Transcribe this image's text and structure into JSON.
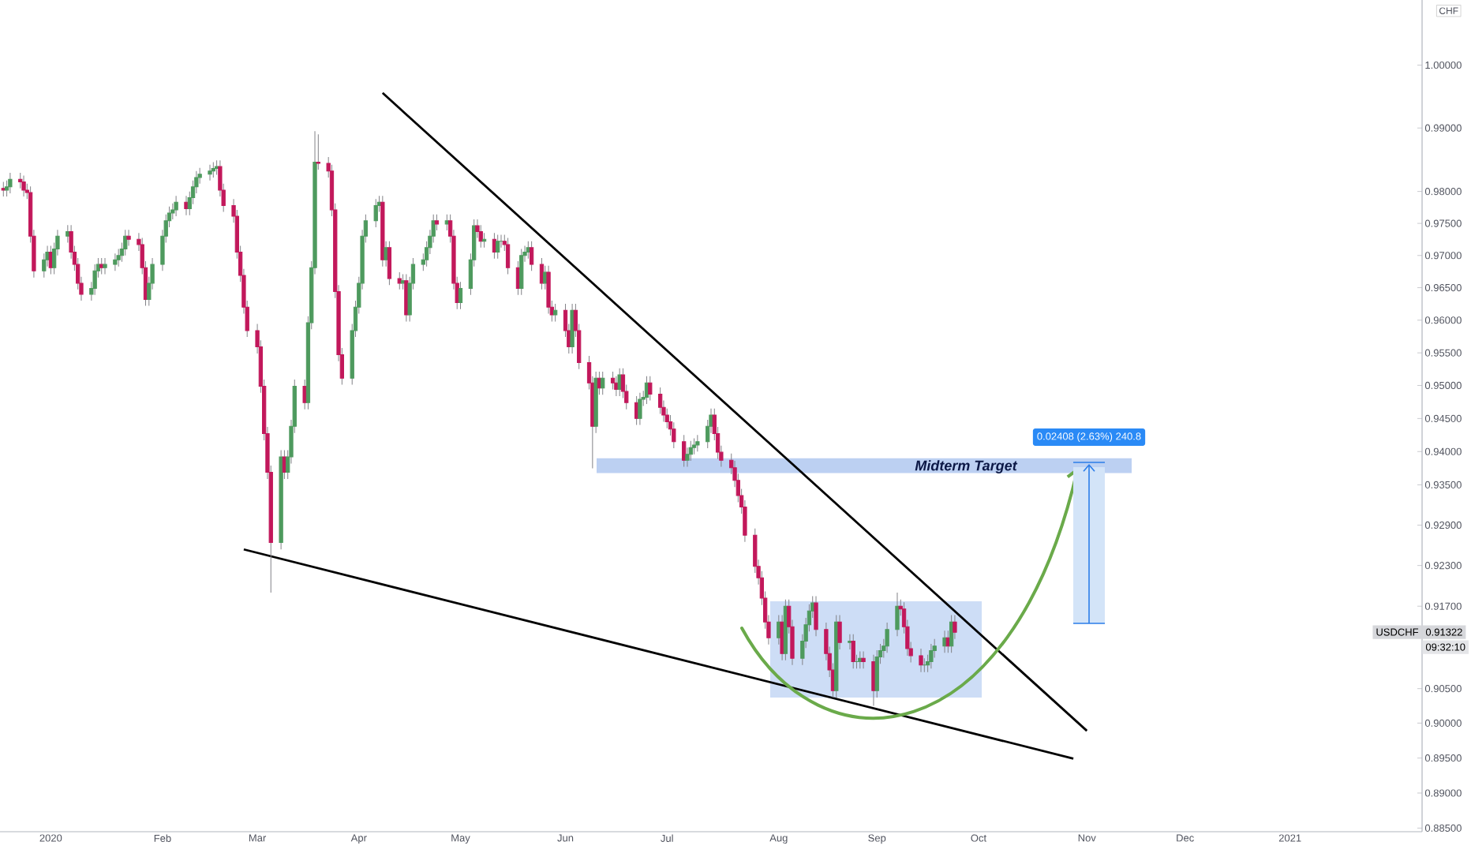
{
  "chart_data": {
    "type": "candlestick",
    "ylabel": "CHF",
    "log": true,
    "xlim": [
      "2019-12-17",
      "2021-02-09"
    ],
    "ylim": [
      0.8845,
      1.0105
    ],
    "xticks": [
      {
        "value": "2020-01-01",
        "label": "2020"
      },
      {
        "value": "2020-02-03",
        "label": "Feb"
      },
      {
        "value": "2020-03-02",
        "label": "Mar"
      },
      {
        "value": "2020-04-01",
        "label": "Apr"
      },
      {
        "value": "2020-05-01",
        "label": "May"
      },
      {
        "value": "2020-06-01",
        "label": "Jun"
      },
      {
        "value": "2020-07-01",
        "label": "Jul"
      },
      {
        "value": "2020-08-03",
        "label": "Aug"
      },
      {
        "value": "2020-09-01",
        "label": "Sep"
      },
      {
        "value": "2020-10-01",
        "label": "Oct"
      },
      {
        "value": "2020-11-02",
        "label": "Nov"
      },
      {
        "value": "2020-12-01",
        "label": "Dec"
      },
      {
        "value": "2021-01-01",
        "label": "2021"
      }
    ],
    "yticks": [
      {
        "value": 0.885,
        "label": "0.88500"
      },
      {
        "value": 0.89,
        "label": "0.89000"
      },
      {
        "value": 0.895,
        "label": "0.89500"
      },
      {
        "value": 0.9,
        "label": "0.90000"
      },
      {
        "value": 0.905,
        "label": "0.90500"
      },
      {
        "value": 0.917,
        "label": "0.91700"
      },
      {
        "value": 0.923,
        "label": "0.92300"
      },
      {
        "value": 0.929,
        "label": "0.92900"
      },
      {
        "value": 0.935,
        "label": "0.93500"
      },
      {
        "value": 0.94,
        "label": "0.94000"
      },
      {
        "value": 0.945,
        "label": "0.94500"
      },
      {
        "value": 0.95,
        "label": "0.95000"
      },
      {
        "value": 0.955,
        "label": "0.95500"
      },
      {
        "value": 0.96,
        "label": "0.96000"
      },
      {
        "value": 0.965,
        "label": "0.96500"
      },
      {
        "value": 0.97,
        "label": "0.97000"
      },
      {
        "value": 0.975,
        "label": "0.97500"
      },
      {
        "value": 0.98,
        "label": "0.98000"
      },
      {
        "value": 0.99,
        "label": "0.99000"
      },
      {
        "value": 1.0,
        "label": "1.00000"
      }
    ],
    "colors": [
      "#c2185b",
      "#4e9a5e",
      "#4e9a5e",
      "#c2185b",
      "#c2185b",
      "#c2185b",
      "#c2185b",
      "#c2185b",
      "#4e9a5e",
      "#4e9a5e",
      "#c2185b",
      "#4e9a5e",
      "#4e9a5e",
      "#4e9a5e",
      "#c2185b",
      "#c2185b",
      "#c2185b",
      "#c2185b",
      "#4e9a5e",
      "#4e9a5e",
      "#4e9a5e",
      "#c2185b",
      "#4e9a5e",
      "#4e9a5e",
      "#4e9a5e",
      "#4e9a5e",
      "#4e9a5e",
      "#c2185b",
      "#c2185b",
      "#c2185b",
      "#c2185b",
      "#4e9a5e",
      "#4e9a5e",
      "#4e9a5e",
      "#4e9a5e",
      "#4e9a5e",
      "#4e9a5e",
      "#4e9a5e",
      "#c2185b",
      "#4e9a5e",
      "#4e9a5e",
      "#4e9a5e",
      "#4e9a5e",
      "#4e9a5e",
      "#4e9a5e",
      "#4e9a5e",
      "#c2185b",
      "#c2185b",
      "#c2185b",
      "#c2185b",
      "#c2185b",
      "#c2185b",
      "#c2185b",
      "#c2185b",
      "#c2185b",
      "#c2185b",
      "#c2185b",
      "#c2185b",
      "#4e9a5e",
      "#c2185b",
      "#4e9a5e",
      "#4e9a5e",
      "#4e9a5e",
      "#c2185b",
      "#4e9a5e",
      "#4e9a5e",
      "#4e9a5e",
      "#c2185b",
      "#c2185b",
      "#c2185b",
      "#c2185b",
      "#c2185b",
      "#c2185b",
      "#4e9a5e",
      "#4e9a5e",
      "#4e9a5e",
      "#4e9a5e",
      "#4e9a5e",
      "#4e9a5e",
      "#4e9a5e",
      "#c2185b",
      "#4e9a5e",
      "#c2185b",
      "#c2185b",
      "#4e9a5e",
      "#c2185b",
      "#4e9a5e",
      "#4e9a5e",
      "#4e9a5e",
      "#4e9a5e",
      "#4e9a5e",
      "#4e9a5e",
      "#c2185b",
      "#4e9a5e",
      "#c2185b",
      "#c2185b",
      "#c2185b",
      "#4e9a5e",
      "#4e9a5e",
      "#4e9a5e",
      "#c2185b",
      "#c2185b",
      "#4e9a5e",
      "#c2185b",
      "#4e9a5e",
      "#4e9a5e",
      "#c2185b",
      "#c2185b",
      "#c2185b",
      "#4e9a5e",
      "#4e9a5e",
      "#4e9a5e",
      "#c2185b",
      "#c2185b",
      "#4e9a5e",
      "#c2185b",
      "#c2185b",
      "#4e9a5e",
      "#c2185b",
      "#c2185b",
      "#4e9a5e",
      "#c2185b",
      "#c2185b",
      "#c2185b",
      "#c2185b",
      "#4e9a5e",
      "#c2185b",
      "#4e9a5e",
      "#c2185b",
      "#c2185b",
      "#4e9a5e",
      "#c2185b",
      "#c2185b",
      "#c2185b",
      "#4e9a5e",
      "#4e9a5e",
      "#4e9a5e",
      "#c2185b",
      "#c2185b",
      "#c2185b",
      "#c2185b",
      "#c2185b",
      "#c2185b",
      "#c2185b",
      "#4e9a5e",
      "#4e9a5e",
      "#4e9a5e",
      "#4e9a5e",
      "#4e9a5e",
      "#4e9a5e",
      "#c2185b",
      "#c2185b",
      "#c2185b",
      "#c2185b",
      "#c2185b",
      "#c2185b",
      "#c2185b",
      "#c2185b",
      "#c2185b",
      "#c2185b",
      "#c2185b",
      "#c2185b",
      "#c2185b",
      "#4e9a5e",
      "#c2185b",
      "#4e9a5e",
      "#c2185b",
      "#c2185b",
      "#4e9a5e",
      "#4e9a5e",
      "#4e9a5e",
      "#4e9a5e",
      "#c2185b",
      "#c2185b",
      "#c2185b",
      "#c2185b",
      "#4e9a5e",
      "#c2185b",
      "#4e9a5e",
      "#c2185b",
      "#4e9a5e",
      "#4e9a5e",
      "#c2185b",
      "#c2185b",
      "#4e9a5e",
      "#4e9a5e",
      "#4e9a5e",
      "#4e9a5e",
      "#4e9a5e",
      "#c2185b",
      "#c2185b",
      "#c2185b",
      "#c2185b",
      "#c2185b",
      "#4e9a5e",
      "#4e9a5e",
      "#4e9a5e",
      "#4e9a5e",
      "#4e9a5e",
      "#c2185b",
      "#4e9a5e",
      "#c2185b"
    ],
    "x": [
      "2019-12-18",
      "2019-12-19",
      "2019-12-20",
      "2019-12-23",
      "2019-12-24",
      "2019-12-25",
      "2019-12-26",
      "2019-12-27",
      "2019-12-30",
      "2019-12-31",
      "2020-01-01",
      "2020-01-02",
      "2020-01-03",
      "2020-01-06",
      "2020-01-07",
      "2020-01-08",
      "2020-01-09",
      "2020-01-10",
      "2020-01-13",
      "2020-01-14",
      "2020-01-15",
      "2020-01-16",
      "2020-01-17",
      "2020-01-20",
      "2020-01-21",
      "2020-01-22",
      "2020-01-23",
      "2020-01-24",
      "2020-01-27",
      "2020-01-28",
      "2020-01-29",
      "2020-01-30",
      "2020-01-31",
      "2020-02-03",
      "2020-02-04",
      "2020-02-05",
      "2020-02-06",
      "2020-02-07",
      "2020-02-10",
      "2020-02-11",
      "2020-02-12",
      "2020-02-13",
      "2020-02-14",
      "2020-02-17",
      "2020-02-18",
      "2020-02-19",
      "2020-02-20",
      "2020-02-21",
      "2020-02-24",
      "2020-02-25",
      "2020-02-26",
      "2020-02-27",
      "2020-02-28",
      "2020-03-02",
      "2020-03-03",
      "2020-03-04",
      "2020-03-05",
      "2020-03-06",
      "2020-03-09",
      "2020-03-10",
      "2020-03-11",
      "2020-03-12",
      "2020-03-13",
      "2020-03-16",
      "2020-03-17",
      "2020-03-18",
      "2020-03-19",
      "2020-03-20",
      "2020-03-23",
      "2020-03-24",
      "2020-03-25",
      "2020-03-26",
      "2020-03-27",
      "2020-03-30",
      "2020-03-31",
      "2020-04-01",
      "2020-04-02",
      "2020-04-03",
      "2020-04-06",
      "2020-04-07",
      "2020-04-08",
      "2020-04-09",
      "2020-04-10",
      "2020-04-13",
      "2020-04-14",
      "2020-04-15",
      "2020-04-16",
      "2020-04-17",
      "2020-04-20",
      "2020-04-21",
      "2020-04-22",
      "2020-04-23",
      "2020-04-24",
      "2020-04-27",
      "2020-04-28",
      "2020-04-29",
      "2020-04-30",
      "2020-05-01",
      "2020-05-04",
      "2020-05-05",
      "2020-05-06",
      "2020-05-07",
      "2020-05-08",
      "2020-05-11",
      "2020-05-12",
      "2020-05-13",
      "2020-05-14",
      "2020-05-15",
      "2020-05-18",
      "2020-05-19",
      "2020-05-20",
      "2020-05-21",
      "2020-05-22",
      "2020-05-25",
      "2020-05-26",
      "2020-05-27",
      "2020-05-28",
      "2020-05-29",
      "2020-06-01",
      "2020-06-02",
      "2020-06-03",
      "2020-06-04",
      "2020-06-05",
      "2020-06-08",
      "2020-06-09",
      "2020-06-10",
      "2020-06-11",
      "2020-06-12",
      "2020-06-15",
      "2020-06-16",
      "2020-06-17",
      "2020-06-18",
      "2020-06-19",
      "2020-06-22",
      "2020-06-23",
      "2020-06-24",
      "2020-06-25",
      "2020-06-26",
      "2020-06-29",
      "2020-06-30",
      "2020-07-01",
      "2020-07-02",
      "2020-07-03",
      "2020-07-06",
      "2020-07-07",
      "2020-07-08",
      "2020-07-09",
      "2020-07-10",
      "2020-07-13",
      "2020-07-14",
      "2020-07-15",
      "2020-07-16",
      "2020-07-17",
      "2020-07-20",
      "2020-07-21",
      "2020-07-22",
      "2020-07-23",
      "2020-07-24",
      "2020-07-27",
      "2020-07-28",
      "2020-07-29",
      "2020-07-30",
      "2020-07-31",
      "2020-08-03",
      "2020-08-04",
      "2020-08-05",
      "2020-08-06",
      "2020-08-07",
      "2020-08-10",
      "2020-08-11",
      "2020-08-12",
      "2020-08-13",
      "2020-08-14",
      "2020-08-17",
      "2020-08-18",
      "2020-08-19",
      "2020-08-20",
      "2020-08-21",
      "2020-08-24",
      "2020-08-25",
      "2020-08-26",
      "2020-08-27",
      "2020-08-28",
      "2020-08-31",
      "2020-09-01",
      "2020-09-02",
      "2020-09-03",
      "2020-09-04",
      "2020-09-07",
      "2020-09-08",
      "2020-09-09",
      "2020-09-10",
      "2020-09-11",
      "2020-09-14",
      "2020-09-15",
      "2020-09-16",
      "2020-09-17",
      "2020-09-18",
      "2020-09-21",
      "2020-09-22",
      "2020-09-23",
      "2020-09-24"
    ],
    "ohlc": [
      [
        0.9805,
        0.9815,
        0.9792,
        0.9802
      ],
      [
        0.9802,
        0.9817,
        0.9792,
        0.9807
      ],
      [
        0.9807,
        0.9829,
        0.9797,
        0.9819
      ],
      [
        0.9819,
        0.9829,
        0.9805,
        0.9815
      ],
      [
        0.9815,
        0.9825,
        0.9792,
        0.9802
      ],
      [
        0.9802,
        0.9812,
        0.9788,
        0.9798
      ],
      [
        0.9798,
        0.9808,
        0.972,
        0.973
      ],
      [
        0.973,
        0.974,
        0.9666,
        0.9676
      ],
      [
        0.9676,
        0.9703,
        0.9666,
        0.9693
      ],
      [
        0.9693,
        0.9715,
        0.9683,
        0.9705
      ],
      [
        0.9705,
        0.9715,
        0.9671,
        0.9681
      ],
      [
        0.9681,
        0.972,
        0.9671,
        0.971
      ],
      [
        0.971,
        0.974,
        0.97,
        0.973
      ],
      [
        0.973,
        0.9747,
        0.972,
        0.9737
      ],
      [
        0.9737,
        0.9747,
        0.9695,
        0.9705
      ],
      [
        0.9705,
        0.9715,
        0.9676,
        0.9686
      ],
      [
        0.9686,
        0.9696,
        0.9647,
        0.9657
      ],
      [
        0.9657,
        0.9667,
        0.963,
        0.964
      ],
      [
        0.964,
        0.9659,
        0.963,
        0.9649
      ],
      [
        0.9649,
        0.9686,
        0.9639,
        0.9676
      ],
      [
        0.9676,
        0.9696,
        0.9666,
        0.9686
      ],
      [
        0.9686,
        0.9696,
        0.9671,
        0.9681
      ],
      [
        0.9681,
        0.9696,
        0.9671,
        0.9686
      ],
      [
        0.9686,
        0.9703,
        0.9676,
        0.9693
      ],
      [
        0.9693,
        0.971,
        0.9683,
        0.97
      ],
      [
        0.97,
        0.972,
        0.969,
        0.971
      ],
      [
        0.971,
        0.974,
        0.97,
        0.973
      ],
      [
        0.973,
        0.974,
        0.9715,
        0.9725
      ],
      [
        0.9725,
        0.9735,
        0.9707,
        0.9717
      ],
      [
        0.9717,
        0.9727,
        0.9671,
        0.9681
      ],
      [
        0.9681,
        0.9691,
        0.9622,
        0.9632
      ],
      [
        0.9632,
        0.9667,
        0.9622,
        0.9657
      ],
      [
        0.9657,
        0.9696,
        0.9647,
        0.9686
      ],
      [
        0.9686,
        0.974,
        0.9676,
        0.973
      ],
      [
        0.973,
        0.9764,
        0.972,
        0.9754
      ],
      [
        0.9754,
        0.9776,
        0.9744,
        0.9766
      ],
      [
        0.9766,
        0.9781,
        0.9756,
        0.9771
      ],
      [
        0.9771,
        0.9793,
        0.9761,
        0.9783
      ],
      [
        0.9783,
        0.9793,
        0.9763,
        0.9773
      ],
      [
        0.9773,
        0.98,
        0.9763,
        0.979
      ],
      [
        0.979,
        0.9817,
        0.978,
        0.9807
      ],
      [
        0.9807,
        0.9832,
        0.9797,
        0.9822
      ],
      [
        0.9822,
        0.9837,
        0.9812,
        0.9827
      ],
      [
        0.9827,
        0.9842,
        0.9817,
        0.9832
      ],
      [
        0.9832,
        0.9846,
        0.9822,
        0.9836
      ],
      [
        0.9836,
        0.9849,
        0.9826,
        0.9839
      ],
      [
        0.9839,
        0.9849,
        0.9792,
        0.9802
      ],
      [
        0.9802,
        0.9812,
        0.9768,
        0.9778
      ],
      [
        0.9778,
        0.9788,
        0.9751,
        0.9761
      ],
      [
        0.9761,
        0.9771,
        0.9695,
        0.9705
      ],
      [
        0.9705,
        0.9715,
        0.9659,
        0.9669
      ],
      [
        0.9669,
        0.9679,
        0.961,
        0.962
      ],
      [
        0.962,
        0.963,
        0.9574,
        0.9584
      ],
      [
        0.9584,
        0.9594,
        0.9549,
        0.9559
      ],
      [
        0.9559,
        0.9569,
        0.9489,
        0.9499
      ],
      [
        0.9499,
        0.9509,
        0.9417,
        0.9427
      ],
      [
        0.9427,
        0.9437,
        0.9359,
        0.9369
      ],
      [
        0.9369,
        0.9379,
        0.919,
        0.9264
      ],
      [
        0.9264,
        0.9402,
        0.9254,
        0.9392
      ],
      [
        0.9392,
        0.9402,
        0.9359,
        0.9369
      ],
      [
        0.9369,
        0.9402,
        0.9359,
        0.9392
      ],
      [
        0.9392,
        0.9448,
        0.9382,
        0.9438
      ],
      [
        0.9438,
        0.9509,
        0.9428,
        0.9499
      ],
      [
        0.9499,
        0.9509,
        0.9464,
        0.9474
      ],
      [
        0.9474,
        0.9606,
        0.9464,
        0.9596
      ],
      [
        0.9596,
        0.9691,
        0.9586,
        0.9681
      ],
      [
        0.9681,
        0.9895,
        0.9671,
        0.9846
      ],
      [
        0.9846,
        0.989,
        0.9834,
        0.9844
      ],
      [
        0.9844,
        0.9854,
        0.9822,
        0.9832
      ],
      [
        0.9832,
        0.9842,
        0.9761,
        0.9771
      ],
      [
        0.9771,
        0.9781,
        0.9634,
        0.9644
      ],
      [
        0.9644,
        0.9654,
        0.9537,
        0.9547
      ],
      [
        0.9547,
        0.9557,
        0.9501,
        0.9511
      ],
      [
        0.9511,
        0.9594,
        0.9501,
        0.9584
      ],
      [
        0.9584,
        0.963,
        0.9574,
        0.962
      ],
      [
        0.962,
        0.9667,
        0.961,
        0.9657
      ],
      [
        0.9657,
        0.974,
        0.9647,
        0.973
      ],
      [
        0.973,
        0.9764,
        0.972,
        0.9754
      ],
      [
        0.9754,
        0.9788,
        0.9744,
        0.9778
      ],
      [
        0.9778,
        0.9793,
        0.9768,
        0.9783
      ],
      [
        0.9783,
        0.9793,
        0.9683,
        0.9693
      ],
      [
        0.9693,
        0.9722,
        0.9683,
        0.9712
      ],
      [
        0.9712,
        0.9722,
        0.9654,
        0.9664
      ],
      [
        0.9664,
        0.9674,
        0.9647,
        0.9657
      ],
      [
        0.9657,
        0.9671,
        0.9647,
        0.9661
      ],
      [
        0.9661,
        0.9671,
        0.9598,
        0.9608
      ],
      [
        0.9608,
        0.9667,
        0.9598,
        0.9657
      ],
      [
        0.9657,
        0.9696,
        0.9647,
        0.9686
      ],
      [
        0.9686,
        0.9703,
        0.9676,
        0.9693
      ],
      [
        0.9693,
        0.9722,
        0.9683,
        0.9712
      ],
      [
        0.9712,
        0.974,
        0.9702,
        0.973
      ],
      [
        0.973,
        0.9764,
        0.972,
        0.9754
      ],
      [
        0.9754,
        0.9764,
        0.9739,
        0.9749
      ],
      [
        0.9749,
        0.9764,
        0.9739,
        0.9754
      ],
      [
        0.9754,
        0.9764,
        0.972,
        0.973
      ],
      [
        0.973,
        0.974,
        0.9647,
        0.9657
      ],
      [
        0.9657,
        0.9667,
        0.9617,
        0.9627
      ],
      [
        0.9627,
        0.9659,
        0.9617,
        0.9649
      ],
      [
        0.9649,
        0.9703,
        0.9639,
        0.9693
      ],
      [
        0.9693,
        0.9756,
        0.9683,
        0.9746
      ],
      [
        0.9746,
        0.9756,
        0.9727,
        0.9737
      ],
      [
        0.9737,
        0.9747,
        0.9712,
        0.9722
      ],
      [
        0.9722,
        0.9735,
        0.9712,
        0.9725
      ],
      [
        0.9725,
        0.9735,
        0.9695,
        0.9705
      ],
      [
        0.9705,
        0.9732,
        0.9695,
        0.9722
      ],
      [
        0.9722,
        0.9732,
        0.9712,
        0.9722
      ],
      [
        0.9722,
        0.9732,
        0.9707,
        0.9717
      ],
      [
        0.9717,
        0.9727,
        0.9671,
        0.9681
      ],
      [
        0.9681,
        0.9691,
        0.9639,
        0.9649
      ],
      [
        0.9649,
        0.971,
        0.9639,
        0.97
      ],
      [
        0.97,
        0.9715,
        0.969,
        0.9705
      ],
      [
        0.9705,
        0.9722,
        0.9695,
        0.9712
      ],
      [
        0.9712,
        0.9722,
        0.9676,
        0.9686
      ],
      [
        0.9686,
        0.9696,
        0.9647,
        0.9657
      ],
      [
        0.9657,
        0.9684,
        0.9647,
        0.9674
      ],
      [
        0.9674,
        0.9684,
        0.961,
        0.962
      ],
      [
        0.962,
        0.963,
        0.9598,
        0.9608
      ],
      [
        0.9608,
        0.9625,
        0.9598,
        0.9615
      ],
      [
        0.9615,
        0.9625,
        0.9574,
        0.9584
      ],
      [
        0.9584,
        0.9594,
        0.9549,
        0.9559
      ],
      [
        0.9559,
        0.9625,
        0.9549,
        0.9615
      ],
      [
        0.9615,
        0.9625,
        0.9574,
        0.9584
      ],
      [
        0.9584,
        0.9594,
        0.9525,
        0.9535
      ],
      [
        0.9535,
        0.9545,
        0.9494,
        0.9504
      ],
      [
        0.9504,
        0.9514,
        0.9375,
        0.9438
      ],
      [
        0.9438,
        0.9521,
        0.9428,
        0.9511
      ],
      [
        0.9511,
        0.9521,
        0.9486,
        0.9496
      ],
      [
        0.9496,
        0.9521,
        0.9486,
        0.9511
      ],
      [
        0.9511,
        0.9521,
        0.9494,
        0.9504
      ],
      [
        0.9504,
        0.9514,
        0.9484,
        0.9494
      ],
      [
        0.9494,
        0.9526,
        0.9484,
        0.9516
      ],
      [
        0.9516,
        0.9526,
        0.9481,
        0.9491
      ],
      [
        0.9491,
        0.9501,
        0.9464,
        0.9474
      ],
      [
        0.9474,
        0.9484,
        0.944,
        0.945
      ],
      [
        0.945,
        0.9489,
        0.944,
        0.9479
      ],
      [
        0.9479,
        0.9492,
        0.9469,
        0.9482
      ],
      [
        0.9482,
        0.9514,
        0.9472,
        0.9504
      ],
      [
        0.9504,
        0.9514,
        0.9477,
        0.9487
      ],
      [
        0.9487,
        0.9497,
        0.9457,
        0.9467
      ],
      [
        0.9467,
        0.9477,
        0.9445,
        0.9455
      ],
      [
        0.9455,
        0.9465,
        0.9435,
        0.9445
      ],
      [
        0.9445,
        0.9455,
        0.9424,
        0.9434
      ],
      [
        0.9434,
        0.9444,
        0.9405,
        0.9415
      ],
      [
        0.9415,
        0.9425,
        0.9377,
        0.9387
      ],
      [
        0.9387,
        0.9406,
        0.9377,
        0.9396
      ],
      [
        0.9396,
        0.9416,
        0.9386,
        0.9406
      ],
      [
        0.9406,
        0.942,
        0.9396,
        0.941
      ],
      [
        0.941,
        0.9425,
        0.94,
        0.9415
      ],
      [
        0.9415,
        0.9448,
        0.9405,
        0.9438
      ],
      [
        0.9438,
        0.9465,
        0.9428,
        0.9455
      ],
      [
        0.9455,
        0.9465,
        0.9417,
        0.9427
      ],
      [
        0.9427,
        0.9437,
        0.9389,
        0.9399
      ],
      [
        0.9399,
        0.9409,
        0.9377,
        0.9387
      ],
      [
        0.9387,
        0.9397,
        0.9366,
        0.9376
      ],
      [
        0.9376,
        0.9386,
        0.9347,
        0.9357
      ],
      [
        0.9357,
        0.9367,
        0.9324,
        0.9334
      ],
      [
        0.9334,
        0.9344,
        0.9307,
        0.9317
      ],
      [
        0.9317,
        0.9327,
        0.9265,
        0.9275
      ],
      [
        0.9275,
        0.9285,
        0.9219,
        0.9229
      ],
      [
        0.9229,
        0.9239,
        0.9202,
        0.9212
      ],
      [
        0.9212,
        0.9222,
        0.9172,
        0.9182
      ],
      [
        0.9182,
        0.9192,
        0.9137,
        0.9147
      ],
      [
        0.9147,
        0.9157,
        0.9114,
        0.9124
      ],
      [
        0.9124,
        0.9157,
        0.9114,
        0.9147
      ],
      [
        0.9147,
        0.9157,
        0.9091,
        0.9101
      ],
      [
        0.9101,
        0.918,
        0.9091,
        0.917
      ],
      [
        0.917,
        0.918,
        0.913,
        0.914
      ],
      [
        0.914,
        0.915,
        0.9084,
        0.9094
      ],
      [
        0.9094,
        0.9129,
        0.9084,
        0.9119
      ],
      [
        0.9119,
        0.9153,
        0.9109,
        0.9143
      ],
      [
        0.9143,
        0.9173,
        0.9133,
        0.9163
      ],
      [
        0.9163,
        0.9185,
        0.9153,
        0.9175
      ],
      [
        0.9175,
        0.9185,
        0.9126,
        0.9136
      ],
      [
        0.9136,
        0.9146,
        0.9091,
        0.9101
      ],
      [
        0.9101,
        0.9111,
        0.9067,
        0.9077
      ],
      [
        0.9077,
        0.9087,
        0.9037,
        0.9047
      ],
      [
        0.9047,
        0.9157,
        0.9037,
        0.9147
      ],
      [
        0.9147,
        0.9157,
        0.9107,
        0.9117
      ],
      [
        0.9117,
        0.9129,
        0.9107,
        0.9119
      ],
      [
        0.9119,
        0.9129,
        0.9079,
        0.9089
      ],
      [
        0.9089,
        0.9099,
        0.9079,
        0.9089
      ],
      [
        0.9089,
        0.9104,
        0.9079,
        0.9094
      ],
      [
        0.9094,
        0.9104,
        0.9079,
        0.9089
      ],
      [
        0.9089,
        0.9099,
        0.9025,
        0.9047
      ],
      [
        0.9047,
        0.9106,
        0.9037,
        0.9096
      ],
      [
        0.9096,
        0.9115,
        0.9086,
        0.9105
      ],
      [
        0.9105,
        0.9122,
        0.9095,
        0.9112
      ],
      [
        0.9112,
        0.9146,
        0.9102,
        0.9136
      ],
      [
        0.9136,
        0.919,
        0.9126,
        0.917
      ],
      [
        0.917,
        0.918,
        0.9156,
        0.9166
      ],
      [
        0.9166,
        0.9176,
        0.913,
        0.914
      ],
      [
        0.914,
        0.915,
        0.9098,
        0.9108
      ],
      [
        0.9108,
        0.9118,
        0.9088,
        0.9098
      ],
      [
        0.9098,
        0.9108,
        0.9074,
        0.9084
      ],
      [
        0.9084,
        0.9094,
        0.9074,
        0.9084
      ],
      [
        0.9084,
        0.9099,
        0.9074,
        0.9089
      ],
      [
        0.9089,
        0.9115,
        0.9079,
        0.9105
      ],
      [
        0.9105,
        0.9122,
        0.9095,
        0.9112
      ],
      [
        0.9112,
        0.9134,
        0.9102,
        0.9124
      ],
      [
        0.9124,
        0.9134,
        0.9102,
        0.9112
      ],
      [
        0.9112,
        0.9157,
        0.9102,
        0.9147
      ],
      [
        0.9147,
        0.9157,
        0.9122,
        0.9132
      ]
    ],
    "series": [
      {
        "type": "line",
        "color": "#000000",
        "x": [
          "2020-04-08",
          "2020-11-02"
        ],
        "values": [
          0.9956,
          0.8989
        ]
      },
      {
        "type": "line",
        "color": "#000000",
        "x": [
          "2020-02-27",
          "2020-10-29"
        ],
        "values": [
          0.9254,
          0.8949
        ]
      }
    ],
    "bands": [
      {
        "axis": "y",
        "from": 0.9368,
        "to": 0.939,
        "label": "Midterm Target",
        "color": "#bcd0f2"
      }
    ],
    "annotations": [
      "0.02408 (2.63%) 240.8",
      "USDCHF",
      {
        "text": "0.91322",
        "y": 0.91322
      },
      "09:32:10"
    ]
  }
}
